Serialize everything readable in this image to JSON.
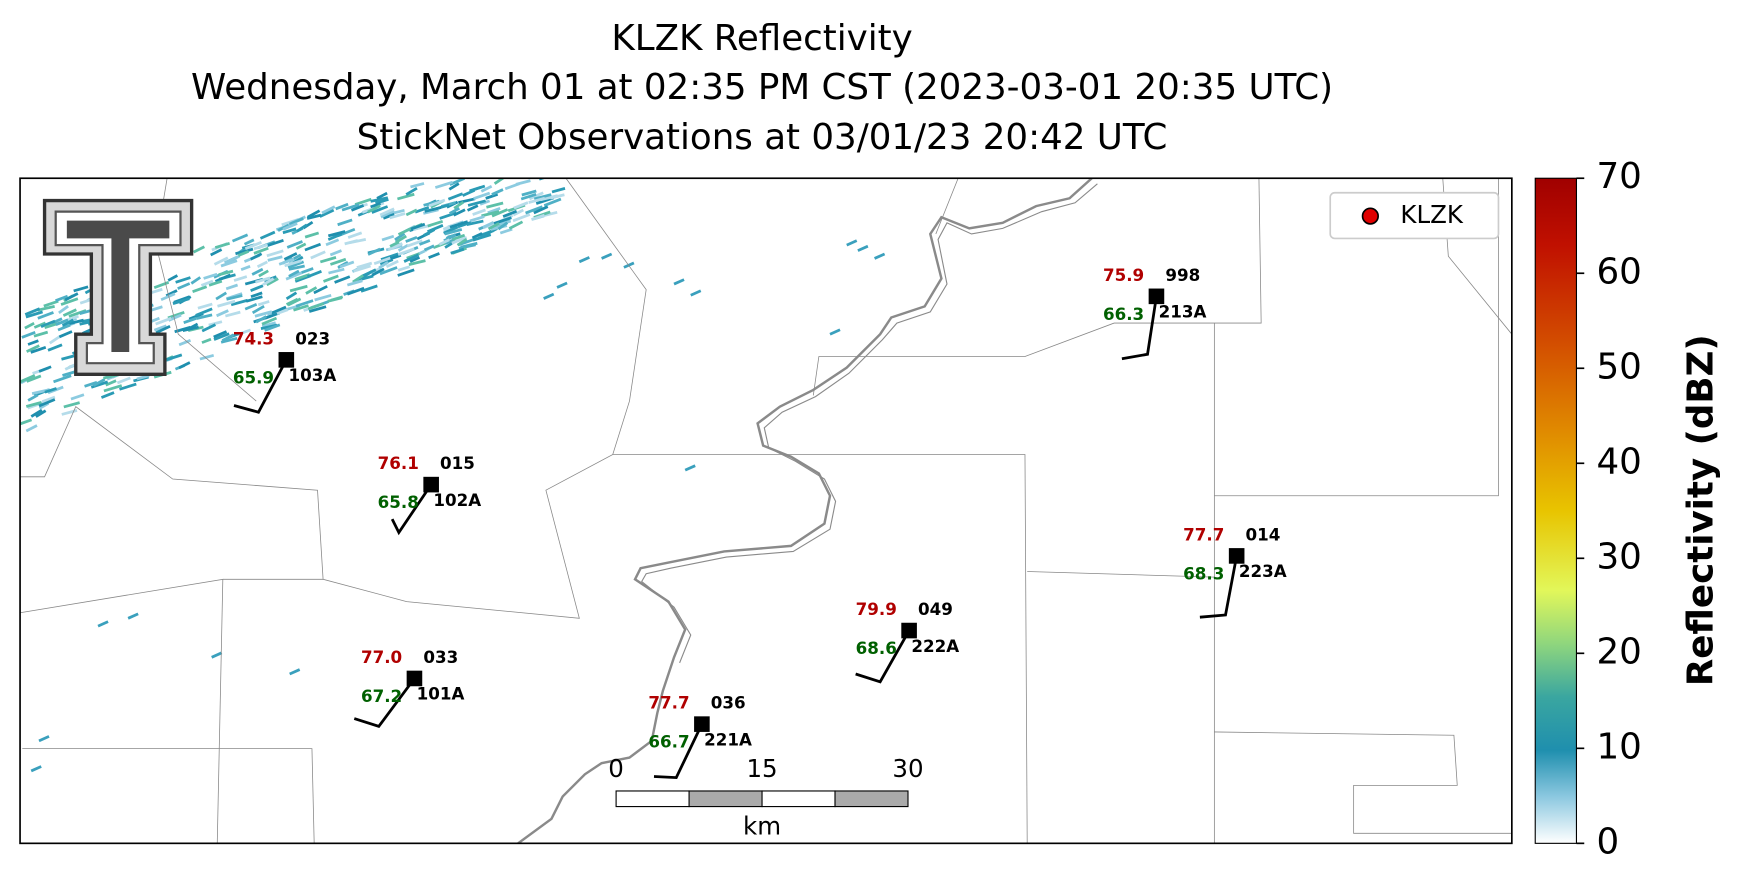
{
  "title": [
    "KLZK Reflectivity",
    "Wednesday, March 01 at 02:35 PM CST (2023-03-01 20:35 UTC)",
    "StickNet Observations at 03/01/23 20:42 UTC"
  ],
  "legend": {
    "label": "KLZK"
  },
  "colorbar": {
    "label": "Reflectivity (dBZ)",
    "lim": [
      0,
      70
    ],
    "ticks": [
      0,
      10,
      20,
      30,
      40,
      50,
      60,
      70
    ]
  },
  "scale_bar": {
    "ticks": [
      0,
      15,
      30
    ],
    "unit": "km"
  },
  "stations": [
    {
      "temperature": "74.3",
      "pressure": "023",
      "dewpoint": "65.9",
      "id": "103A"
    },
    {
      "temperature": "76.1",
      "pressure": "015",
      "dewpoint": "65.8",
      "id": "102A"
    },
    {
      "temperature": "77.0",
      "pressure": "033",
      "dewpoint": "67.2",
      "id": "101A"
    },
    {
      "temperature": "77.7",
      "pressure": "036",
      "dewpoint": "66.7",
      "id": "221A"
    },
    {
      "temperature": "79.9",
      "pressure": "049",
      "dewpoint": "68.6",
      "id": "222A"
    },
    {
      "temperature": "75.9",
      "pressure": "998",
      "dewpoint": "66.3",
      "id": "213A"
    },
    {
      "temperature": "77.7",
      "pressure": "014",
      "dewpoint": "68.3",
      "id": "223A"
    }
  ]
}
